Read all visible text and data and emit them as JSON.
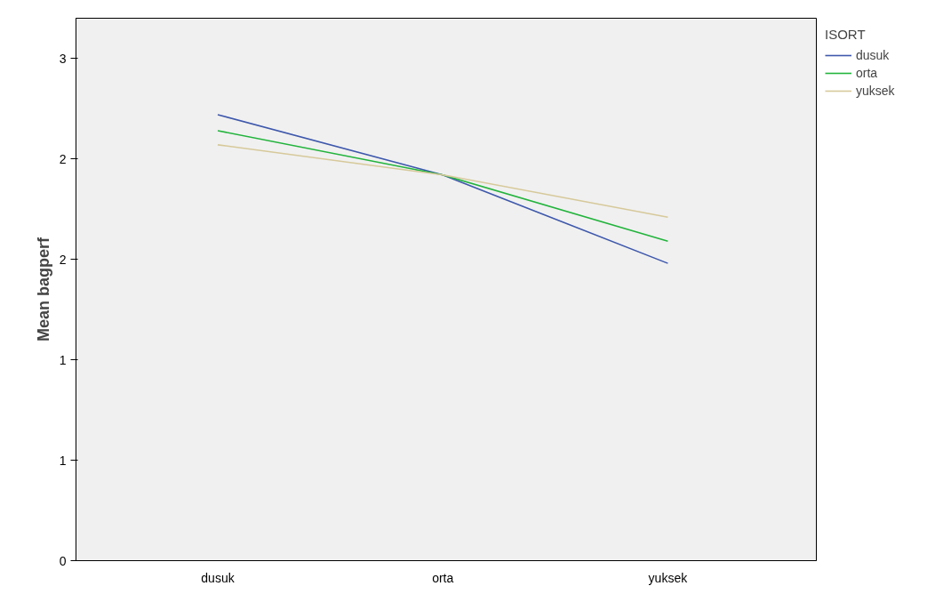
{
  "chart_data": {
    "type": "line",
    "ylabel": "Mean bagperf",
    "legend_title": "ISORT",
    "categories": [
      "dusuk",
      "orta",
      "yuksek"
    ],
    "series": [
      {
        "name": "dusuk",
        "color": "#3e58ac",
        "values": [
          2.22,
          1.92,
          1.48
        ]
      },
      {
        "name": "orta",
        "color": "#22b43c",
        "values": [
          2.14,
          1.92,
          1.59
        ]
      },
      {
        "name": "yuksek",
        "color": "#d6c99a",
        "values": [
          2.07,
          1.92,
          1.71
        ]
      }
    ],
    "ylim": [
      0,
      2.7
    ],
    "yticks": [
      {
        "value": 0,
        "label": "0"
      },
      {
        "value": 0.5,
        "label": "1"
      },
      {
        "value": 1.0,
        "label": "1"
      },
      {
        "value": 1.5,
        "label": "2"
      },
      {
        "value": 2.0,
        "label": "2"
      },
      {
        "value": 2.5,
        "label": "3"
      }
    ],
    "grid": false,
    "legend": "top right",
    "marker": "none",
    "line_style": "solid"
  }
}
